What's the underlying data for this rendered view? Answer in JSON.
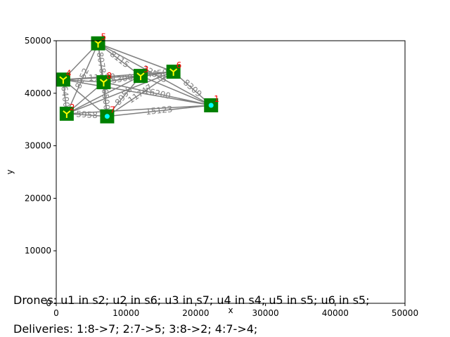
{
  "chart_data": {
    "type": "scatter",
    "title": "",
    "xlabel": "x",
    "ylabel": "y",
    "xlim": [
      0,
      50000
    ],
    "ylim": [
      0,
      50000
    ],
    "x_ticks": [
      "0",
      "10000",
      "20000",
      "30000",
      "40000",
      "50000"
    ],
    "y_ticks": [
      "0",
      "10000",
      "20000",
      "30000",
      "40000",
      "50000"
    ],
    "grid": false,
    "colors": {
      "edge": "#808080",
      "node": "#008000",
      "node_label": "#ff0000",
      "drone": "#ffff00",
      "drone_cyan": "#00ffff"
    },
    "nodes": [
      {
        "id": "1",
        "x": 22200,
        "y": 37700,
        "cyan": true
      },
      {
        "id": "2",
        "x": 1500,
        "y": 36100
      },
      {
        "id": "3",
        "x": 12100,
        "y": 43300
      },
      {
        "id": "4",
        "x": 1000,
        "y": 42600
      },
      {
        "id": "5",
        "x": 6000,
        "y": 49500
      },
      {
        "id": "6",
        "x": 16800,
        "y": 44100
      },
      {
        "id": "7",
        "x": 7300,
        "y": 35600,
        "cyan": true
      },
      {
        "id": "8",
        "x": 6800,
        "y": 42100
      }
    ],
    "edges": [
      {
        "a": "1",
        "b": "2",
        "label": ""
      },
      {
        "a": "1",
        "b": "3",
        "label": ""
      },
      {
        "a": "1",
        "b": "4",
        "label": ""
      },
      {
        "a": "1",
        "b": "5",
        "label": "12325"
      },
      {
        "a": "1",
        "b": "6",
        "label": "8309"
      },
      {
        "a": "1",
        "b": "7",
        "label": "15123"
      },
      {
        "a": "1",
        "b": "8",
        "label": "16200"
      },
      {
        "a": "2",
        "b": "3",
        "label": ""
      },
      {
        "a": "2",
        "b": "4",
        "label": "6400"
      },
      {
        "a": "2",
        "b": "5",
        "label": "8252"
      },
      {
        "a": "2",
        "b": "6",
        "label": ""
      },
      {
        "a": "2",
        "b": "7",
        "label": "5958"
      },
      {
        "a": "2",
        "b": "8",
        "label": ""
      },
      {
        "a": "3",
        "b": "4",
        "label": "11100"
      },
      {
        "a": "3",
        "b": "5",
        "label": "8115"
      },
      {
        "a": "3",
        "b": "6",
        "label": "4450"
      },
      {
        "a": "3",
        "b": "7",
        "label": "8950"
      },
      {
        "a": "3",
        "b": "8",
        "label": "5300"
      },
      {
        "a": "4",
        "b": "5",
        "label": ""
      },
      {
        "a": "4",
        "b": "6",
        "label": ""
      },
      {
        "a": "4",
        "b": "7",
        "label": ""
      },
      {
        "a": "4",
        "b": "8",
        "label": ""
      },
      {
        "a": "5",
        "b": "6",
        "label": ""
      },
      {
        "a": "5",
        "b": "7",
        "label": ""
      },
      {
        "a": "5",
        "b": "8",
        "label": "8078"
      },
      {
        "a": "6",
        "b": "7",
        "label": "11747"
      },
      {
        "a": "6",
        "b": "8",
        "label": ""
      },
      {
        "a": "7",
        "b": "8",
        "label": "6500"
      }
    ]
  },
  "captions": {
    "drones": "Drones: u1 in s2; u2 in s6; u3 in s7; u4 in s4; u5 in s5; u6 in s5;",
    "deliveries": "Deliveries: 1:8->7; 2:7->5; 3:8->2; 4:7->4;"
  }
}
